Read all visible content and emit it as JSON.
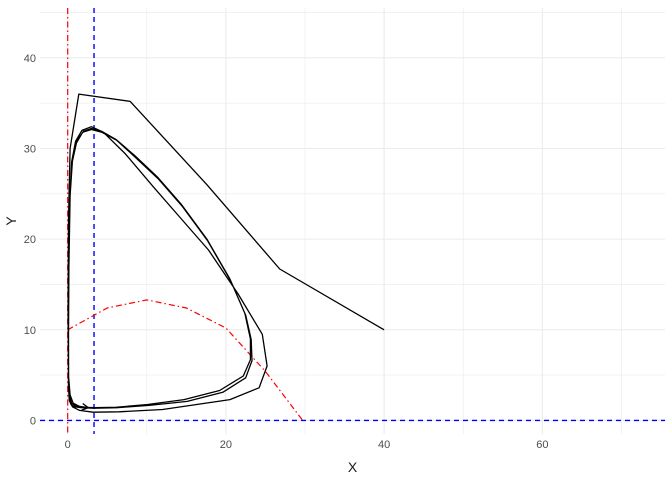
{
  "chart_data": {
    "type": "line",
    "title": "",
    "xlabel": "X",
    "ylabel": "Y",
    "xlim": [
      -3.5,
      75.5
    ],
    "ylim": [
      -1.5,
      45.5
    ],
    "x_ticks": [
      0,
      20,
      40,
      60
    ],
    "y_ticks": [
      0,
      10,
      20,
      30,
      40
    ],
    "x_minor_ticks": [
      10,
      30,
      50,
      70
    ],
    "y_minor_ticks": [
      5,
      15,
      25,
      35,
      45
    ],
    "grid": true,
    "legend": "none",
    "colors": {
      "trajectory": "#000000",
      "reference": "#0000ff",
      "nullcline": "#ff0000",
      "grid": "#ebebeb",
      "tick_text": "#4d4d4d",
      "title_text": "#1a1a1a"
    },
    "trajectory": {
      "x": [
        40,
        26.8,
        17.6,
        7.9,
        1.4,
        0.3,
        0.1,
        0.05,
        0.1,
        0.3,
        0.6,
        1.5,
        3.2,
        6.5,
        12,
        20.5,
        24.2,
        25.2,
        24.6,
        21.5,
        17.8,
        14.1,
        10.8,
        7.3,
        4.5,
        3.0,
        1.8,
        1.0,
        0.5,
        0.25,
        0.12,
        0.08,
        0.1,
        0.2,
        0.45,
        0.9,
        1.8,
        3.3,
        6.2,
        10.3,
        15.1,
        19.6,
        22.5,
        23.3,
        23.2,
        22.5,
        20.6,
        17.7,
        14.5,
        11.5,
        8.6,
        6.2,
        4.3,
        3.0,
        1.9,
        1.1,
        0.6,
        0.3,
        0.15,
        0.1,
        0.12,
        0.25,
        0.5,
        1.0,
        1.9,
        3.4,
        6.1,
        10.1,
        14.7,
        19.2,
        22.2,
        23.1,
        23.1,
        22.4,
        20.5,
        17.6,
        14.4,
        11.4,
        8.5,
        6.1,
        4.3,
        3.0,
        2.0,
        1.2,
        0.6,
        0.3,
        0.15,
        0.1,
        0.12,
        0.3,
        0.7,
        1.5,
        2.6
      ],
      "y": [
        10,
        16.7,
        26,
        35.2,
        36,
        30,
        22,
        12,
        5,
        2.2,
        1.5,
        1.1,
        0.9,
        0.95,
        1.2,
        2.3,
        3.6,
        6,
        9.5,
        14,
        18.8,
        22.5,
        25.8,
        29.4,
        31.8,
        32.4,
        32,
        30.8,
        28.5,
        24,
        16,
        8,
        3.6,
        2.2,
        1.7,
        1.5,
        1.4,
        1.35,
        1.4,
        1.65,
        2.1,
        3.1,
        4.7,
        6.6,
        8.9,
        11.6,
        15.4,
        19.8,
        23.6,
        26.6,
        29.0,
        30.9,
        31.8,
        32.1,
        31.8,
        30.6,
        28.6,
        24.8,
        17,
        9,
        4.5,
        2.6,
        1.9,
        1.6,
        1.45,
        1.4,
        1.45,
        1.75,
        2.3,
        3.3,
        4.9,
        6.7,
        9.0,
        11.8,
        15.6,
        20.0,
        23.8,
        26.8,
        29.2,
        31.0,
        31.9,
        32.2,
        31.9,
        30.9,
        28.9,
        25.2,
        17.5,
        9.5,
        4.8,
        2.8,
        1.9,
        1.55,
        1.4
      ]
    },
    "arrow_point": [
      2.6,
      1.4
    ],
    "arrow_from": [
      1.5,
      1.55
    ],
    "reference_lines": {
      "horizontal_y": 0,
      "vertical_x": 3.33
    },
    "nullclines": {
      "vertical_x": 0,
      "parabola": {
        "x": [
          0,
          5,
          10,
          15,
          20,
          25,
          29.7
        ],
        "y": [
          10,
          12.4,
          13.3,
          12.4,
          10.2,
          5.4,
          0
        ]
      }
    }
  }
}
